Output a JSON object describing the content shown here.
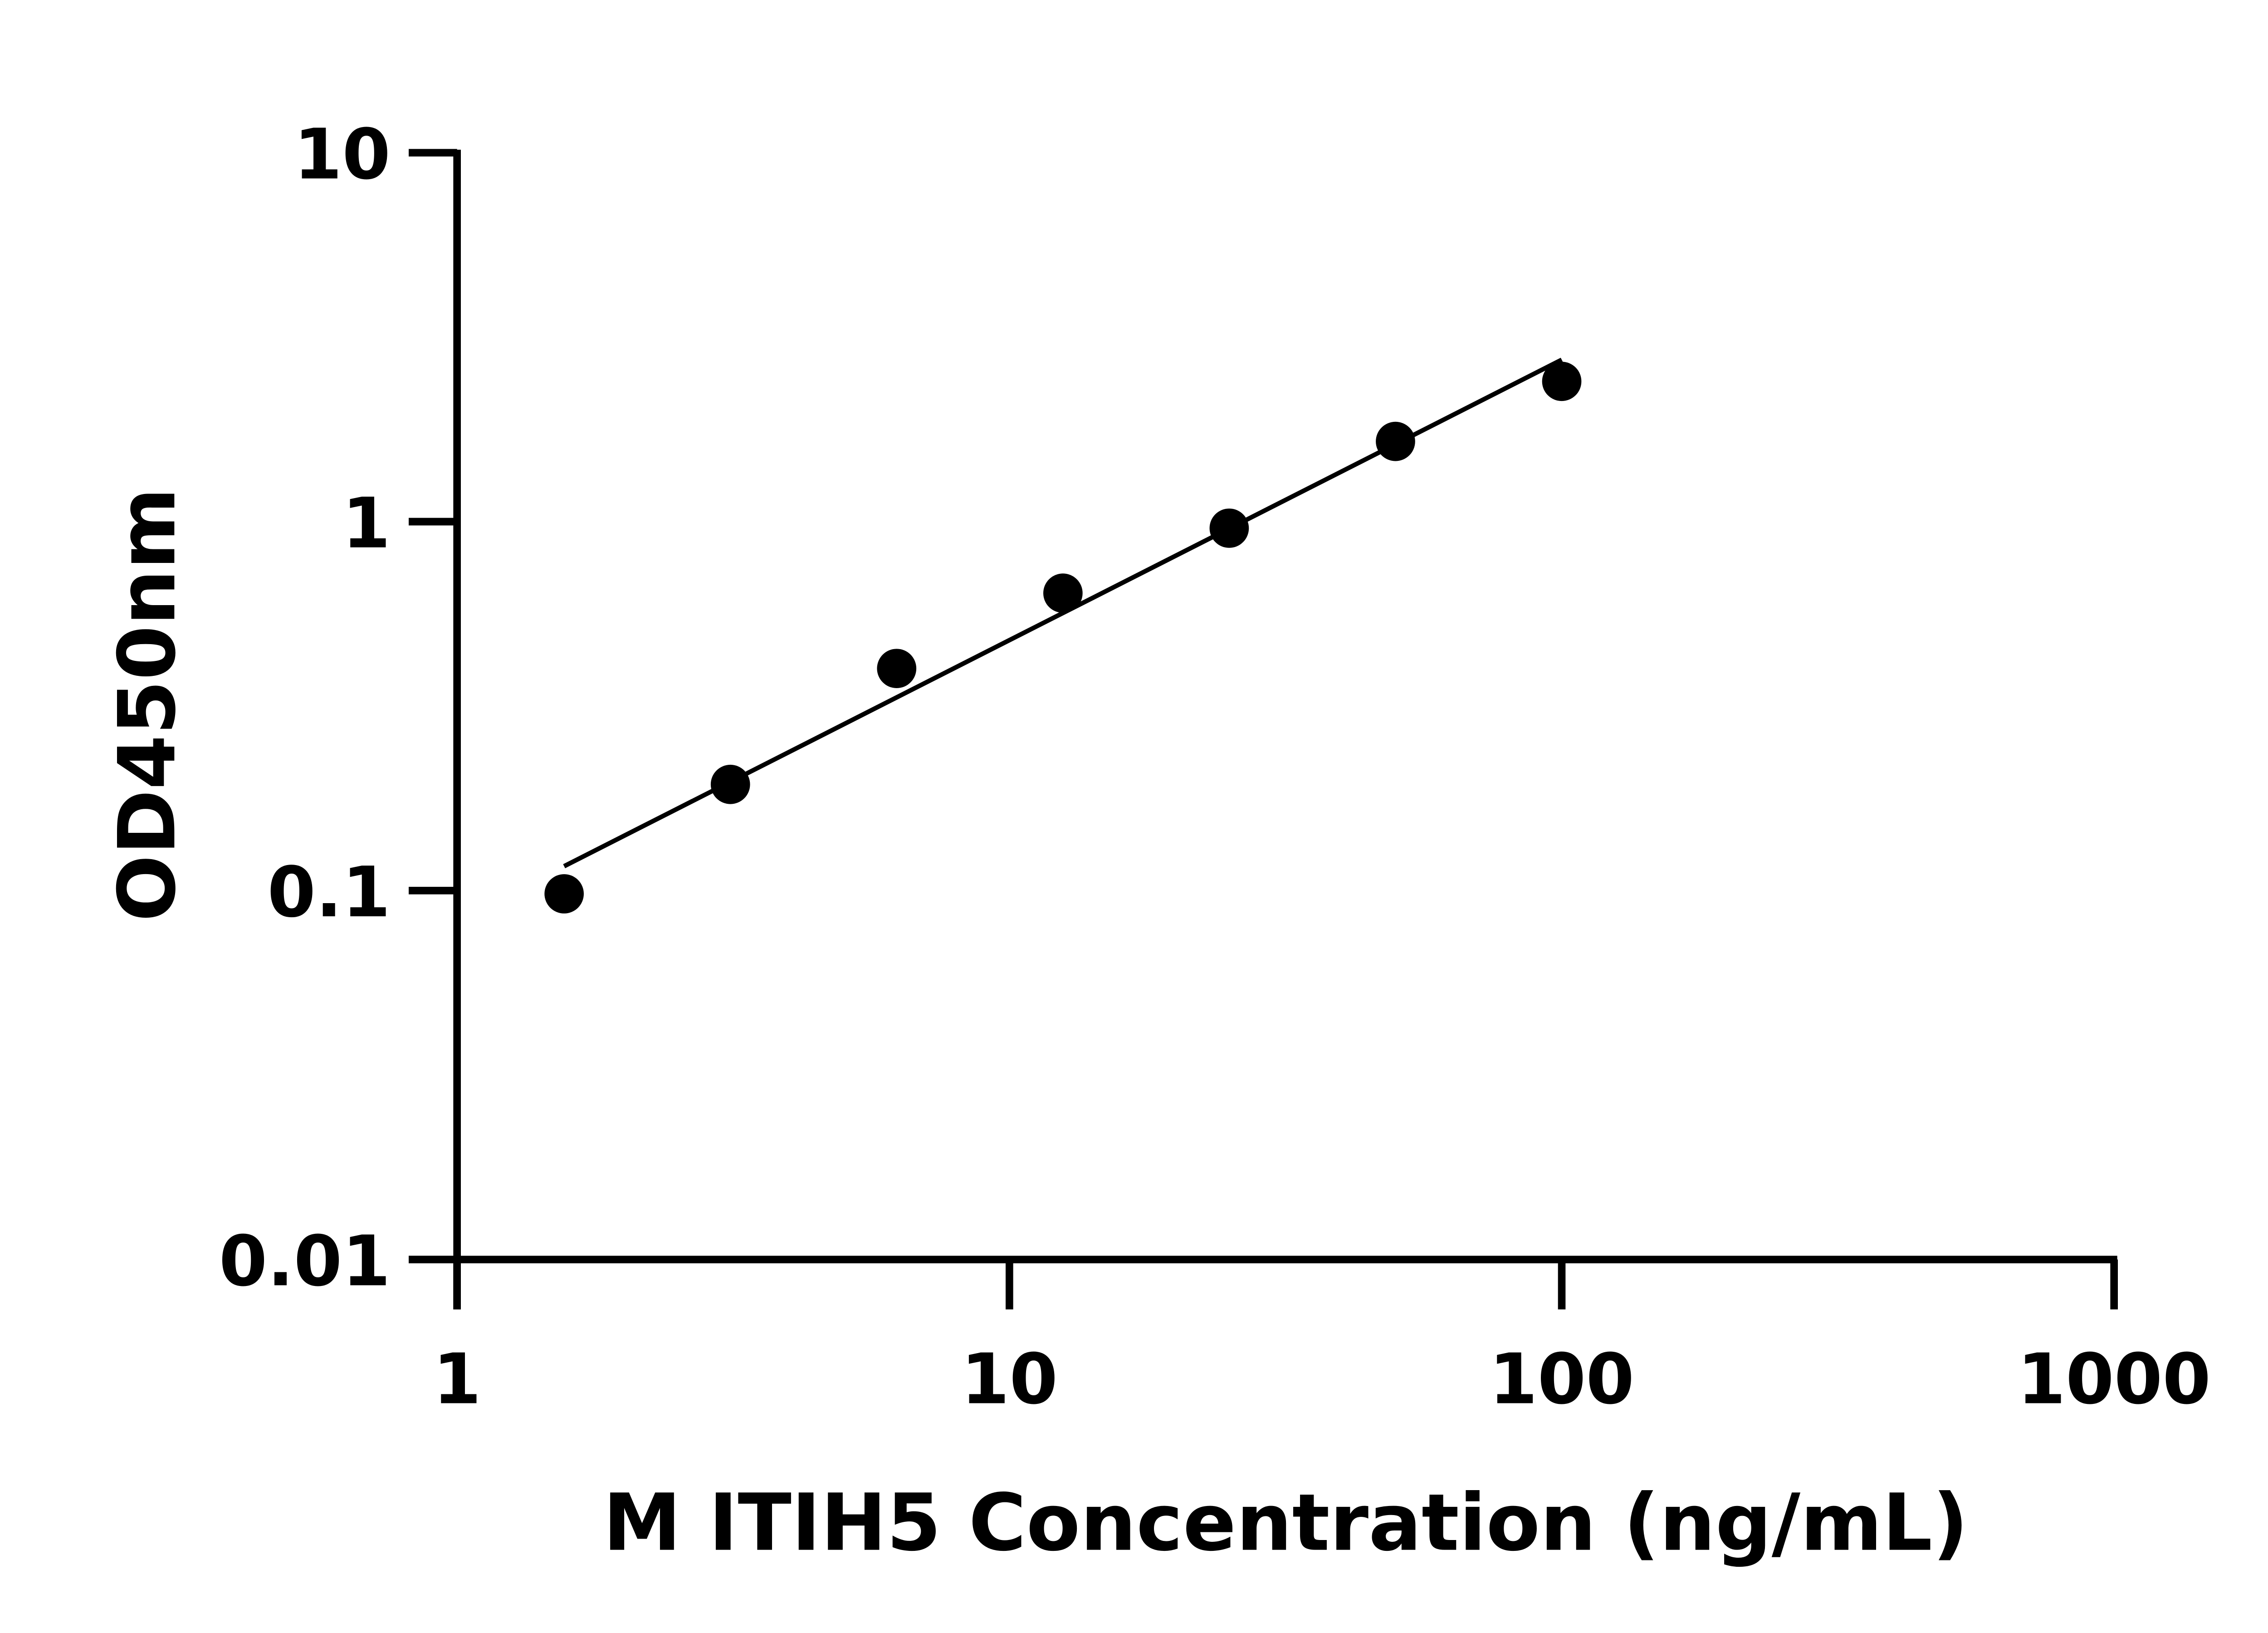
{
  "chart_data": {
    "type": "scatter",
    "title": "",
    "xlabel": "M ITIH5 Concentration (ng/mL)",
    "ylabel": "OD450nm",
    "xscale": "log",
    "yscale": "log",
    "xlim": [
      1,
      1000
    ],
    "ylim": [
      0.01,
      10
    ],
    "xticks": [
      "1",
      "10",
      "100",
      "1000"
    ],
    "yticks": [
      "0.01",
      "0.1",
      "1",
      "10"
    ],
    "grid": false,
    "fit_line": true,
    "x": [
      1.5625,
      3.125,
      6.25,
      12.5,
      25,
      50,
      100
    ],
    "y": [
      0.098,
      0.194,
      0.4,
      0.64,
      0.96,
      1.65,
      2.4
    ],
    "color": "#000000"
  }
}
